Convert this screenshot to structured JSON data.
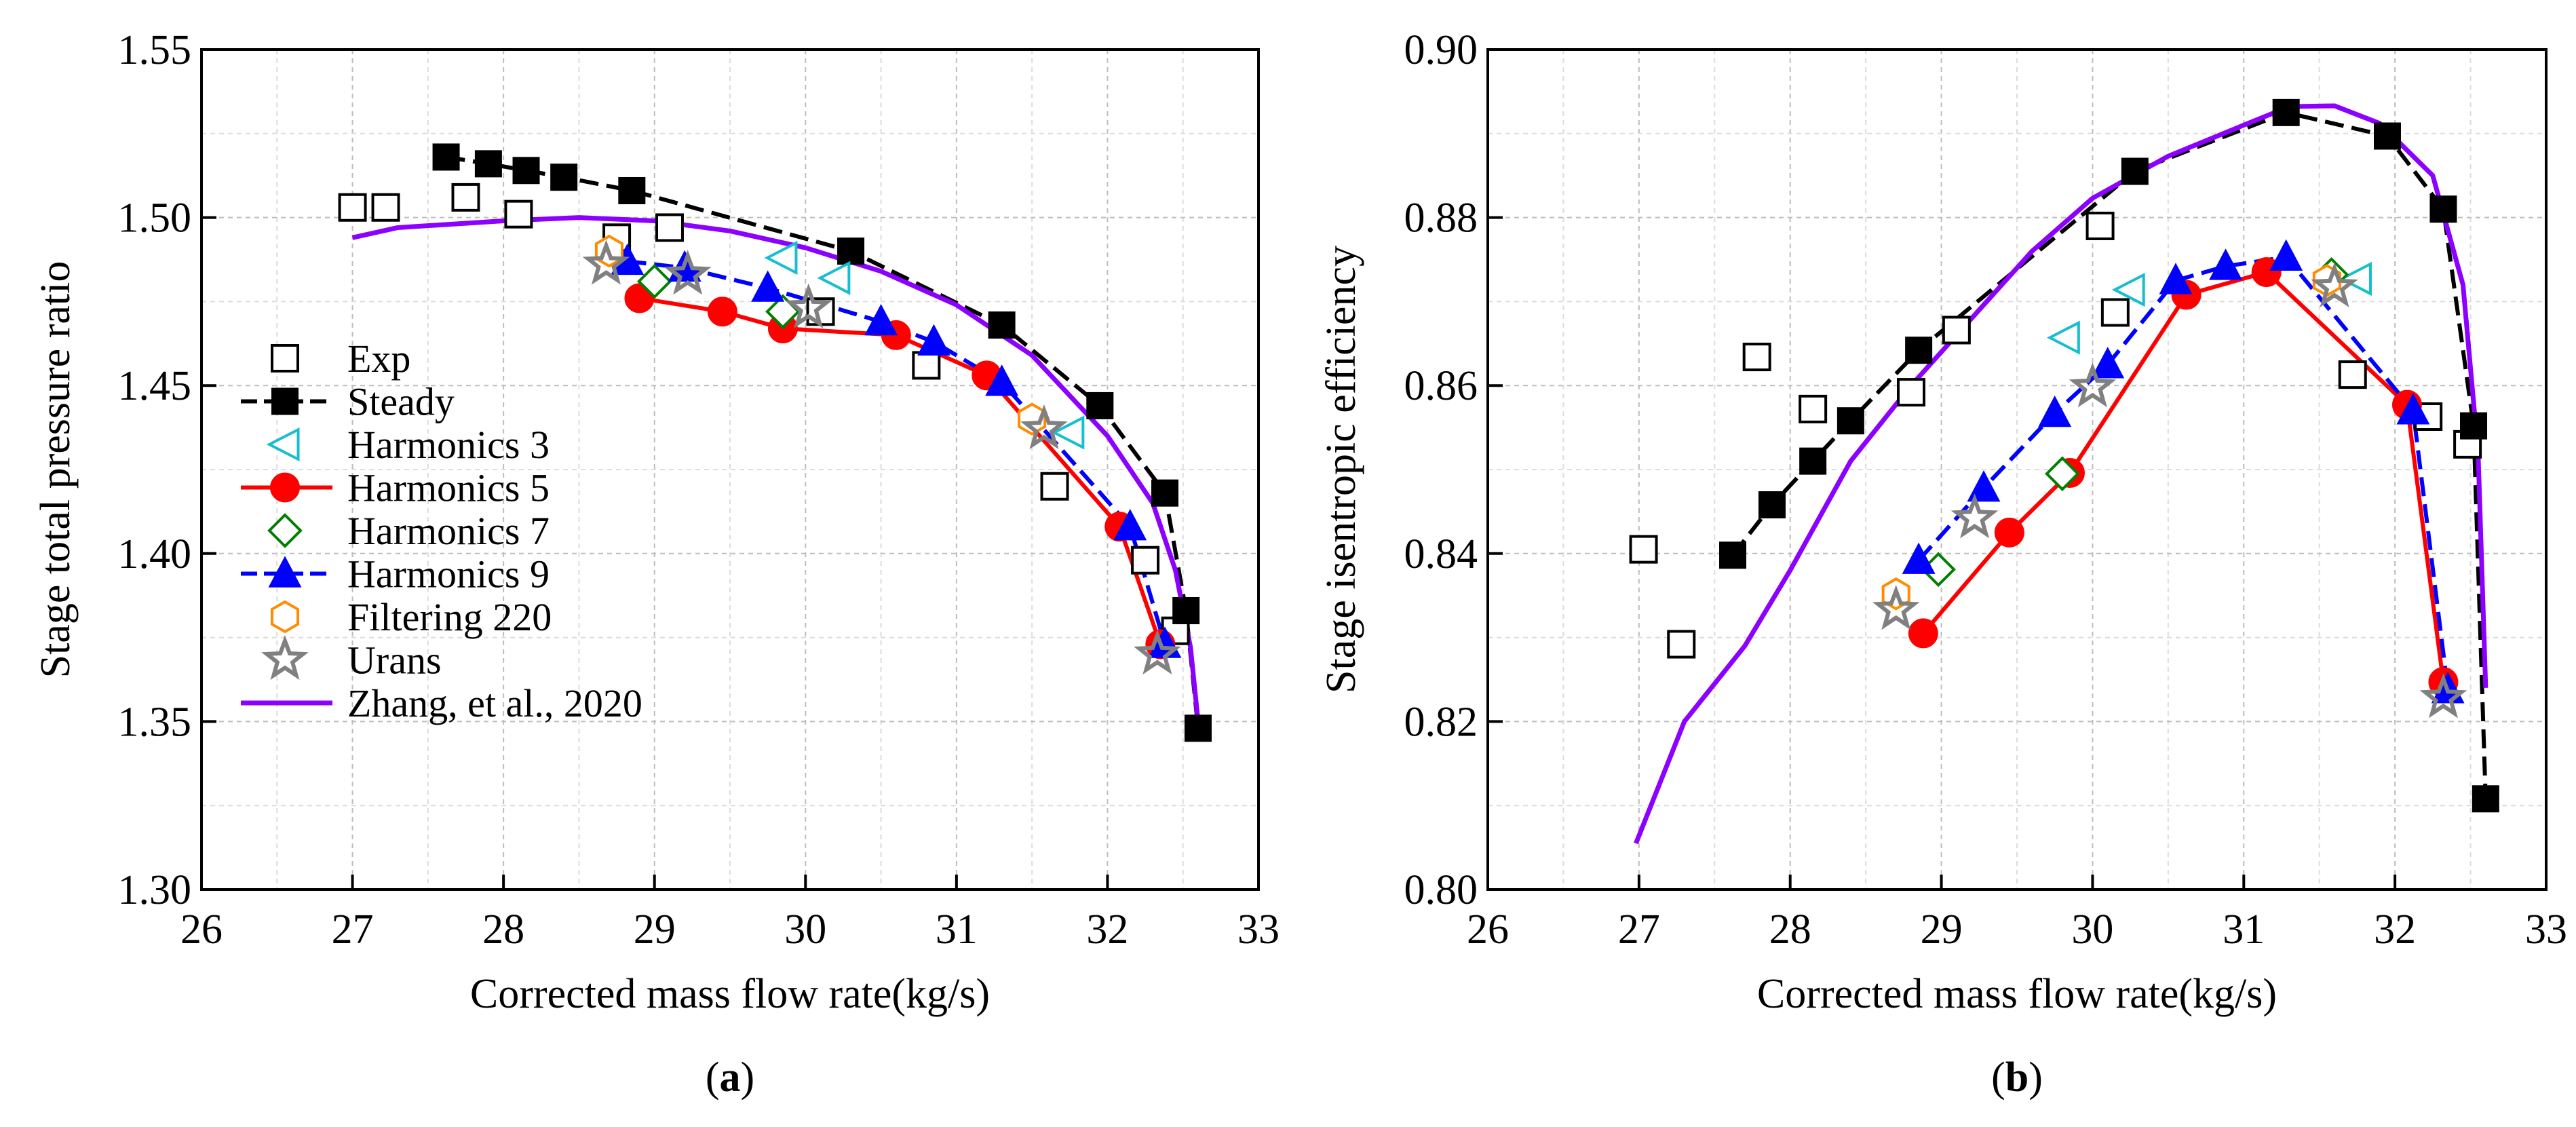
{
  "chart_data": [
    {
      "type": "line",
      "panel_label": "(a)",
      "xlabel": "Corrected mass flow rate(kg/s)",
      "ylabel": "Stage total pressure ratio",
      "xlim": [
        26,
        33
      ],
      "ylim": [
        1.3,
        1.55
      ],
      "xticks": [
        26,
        27,
        28,
        29,
        30,
        31,
        32,
        33
      ],
      "yticks": [
        1.3,
        1.35,
        1.4,
        1.45,
        1.5,
        1.55
      ],
      "ytick_labels": [
        "1.30",
        "1.35",
        "1.40",
        "1.45",
        "1.50",
        "1.55"
      ],
      "grid": true,
      "legend_position": "left",
      "series": [
        {
          "name": "Exp",
          "marker": "square-open",
          "color": "#000000",
          "line": "none",
          "x": [
            27.0,
            27.22,
            27.75,
            28.1,
            28.75,
            29.1,
            30.1,
            30.8,
            31.65,
            32.25,
            32.45
          ],
          "y": [
            1.503,
            1.503,
            1.506,
            1.501,
            1.494,
            1.497,
            1.472,
            1.456,
            1.42,
            1.398,
            1.377
          ]
        },
        {
          "name": "Steady",
          "marker": "square-filled",
          "color": "#000000",
          "line": "dash",
          "x": [
            27.62,
            27.9,
            28.15,
            28.4,
            28.85,
            30.3,
            31.3,
            31.95,
            32.38,
            32.52,
            32.6
          ],
          "y": [
            1.518,
            1.516,
            1.514,
            1.512,
            1.508,
            1.49,
            1.468,
            1.444,
            1.418,
            1.383,
            1.348
          ]
        },
        {
          "name": "Harmonics 3",
          "marker": "triangle-left-open",
          "color": "#17BECF",
          "line": "none",
          "x": [
            29.85,
            30.2,
            31.75
          ],
          "y": [
            1.488,
            1.482,
            1.436
          ]
        },
        {
          "name": "Harmonics 5",
          "marker": "circle-filled",
          "color": "#FF0000",
          "line": "solid",
          "x": [
            28.9,
            29.45,
            29.85,
            30.6,
            31.2,
            32.08,
            32.35
          ],
          "y": [
            1.476,
            1.472,
            1.467,
            1.465,
            1.453,
            1.408,
            1.373
          ]
        },
        {
          "name": "Harmonics 7",
          "marker": "diamond-open",
          "color": "#008000",
          "line": "none",
          "x": [
            29.0,
            29.85
          ],
          "y": [
            1.481,
            1.472
          ]
        },
        {
          "name": "Harmonics 9",
          "marker": "triangle-up-filled",
          "color": "#0000FF",
          "line": "dash",
          "x": [
            28.82,
            29.2,
            29.75,
            30.5,
            30.85,
            31.3,
            32.15,
            32.38
          ],
          "y": [
            1.487,
            1.485,
            1.479,
            1.469,
            1.463,
            1.451,
            1.408,
            1.373
          ]
        },
        {
          "name": "Filtering 220",
          "marker": "hexagon-open",
          "color": "#FF8C00",
          "line": "none",
          "x": [
            28.7,
            31.5
          ],
          "y": [
            1.49,
            1.44
          ]
        },
        {
          "name": "Urans",
          "marker": "star-open",
          "color": "#808080",
          "line": "none",
          "x": [
            28.68,
            29.22,
            30.02,
            31.58,
            32.33
          ],
          "y": [
            1.486,
            1.483,
            1.473,
            1.437,
            1.37
          ]
        },
        {
          "name": "Zhang, et al., 2020",
          "marker": "none",
          "color": "#8B00FF",
          "line": "solid",
          "x": [
            27.0,
            27.3,
            28.0,
            28.5,
            29.0,
            29.5,
            30.0,
            30.5,
            31.0,
            31.5,
            32.0,
            32.3,
            32.45,
            32.55,
            32.6
          ],
          "y": [
            1.494,
            1.497,
            1.499,
            1.5,
            1.499,
            1.496,
            1.491,
            1.484,
            1.474,
            1.459,
            1.435,
            1.415,
            1.395,
            1.372,
            1.35
          ]
        }
      ]
    },
    {
      "type": "line",
      "panel_label": "(b)",
      "xlabel": "Corrected mass flow rate(kg/s)",
      "ylabel": "Stage isentropic efficiency",
      "xlim": [
        26,
        33
      ],
      "ylim": [
        0.8,
        0.9
      ],
      "xticks": [
        26,
        27,
        28,
        29,
        30,
        31,
        32,
        33
      ],
      "yticks": [
        0.8,
        0.82,
        0.84,
        0.86,
        0.88,
        0.9
      ],
      "ytick_labels": [
        "0.80",
        "0.82",
        "0.84",
        "0.86",
        "0.88",
        "0.90"
      ],
      "grid": true,
      "legend_position": "none",
      "series": [
        {
          "name": "Exp",
          "marker": "square-open",
          "color": "#000000",
          "line": "none",
          "x": [
            27.03,
            27.28,
            27.78,
            28.15,
            28.8,
            29.1,
            30.05,
            30.15,
            31.72,
            32.22,
            32.48
          ],
          "y": [
            0.8405,
            0.8292,
            0.8634,
            0.8572,
            0.8592,
            0.8666,
            0.879,
            0.8687,
            0.8613,
            0.8563,
            0.853
          ]
        },
        {
          "name": "Steady",
          "marker": "square-filled",
          "color": "#000000",
          "line": "dash",
          "x": [
            27.62,
            27.88,
            28.15,
            28.4,
            28.85,
            30.28,
            31.28,
            31.95,
            32.32,
            32.52,
            32.6
          ],
          "y": [
            0.8398,
            0.8458,
            0.851,
            0.8558,
            0.8642,
            0.8855,
            0.8925,
            0.8897,
            0.881,
            0.8552,
            0.8108
          ]
        },
        {
          "name": "Harmonics 3",
          "marker": "triangle-left-open",
          "color": "#17BECF",
          "line": "none",
          "x": [
            29.82,
            30.25,
            31.75
          ],
          "y": [
            0.8657,
            0.8714,
            0.8727
          ]
        },
        {
          "name": "Harmonics 5",
          "marker": "circle-filled",
          "color": "#FF0000",
          "line": "solid",
          "x": [
            28.88,
            29.45,
            29.85,
            30.62,
            31.15,
            32.08,
            32.32
          ],
          "y": [
            0.8305,
            0.8425,
            0.8496,
            0.8708,
            0.8735,
            0.8577,
            0.8247
          ]
        },
        {
          "name": "Harmonics 7",
          "marker": "diamond-open",
          "color": "#008000",
          "line": "none",
          "x": [
            28.98,
            29.8,
            31.58
          ],
          "y": [
            0.8381,
            0.8495,
            0.8732
          ]
        },
        {
          "name": "Harmonics 9",
          "marker": "triangle-up-filled",
          "color": "#0000FF",
          "line": "dash",
          "x": [
            28.85,
            29.28,
            29.75,
            30.1,
            30.55,
            30.88,
            31.28,
            32.12,
            32.35
          ],
          "y": [
            0.8392,
            0.8478,
            0.8567,
            0.8625,
            0.8725,
            0.8742,
            0.8753,
            0.857,
            0.8238
          ]
        },
        {
          "name": "Filtering 220",
          "marker": "hexagon-open",
          "color": "#FF8C00",
          "line": "none",
          "x": [
            28.7,
            31.55
          ],
          "y": [
            0.8352,
            0.8725
          ]
        },
        {
          "name": "Urans",
          "marker": "star-open",
          "color": "#808080",
          "line": "none",
          "x": [
            28.7,
            29.22,
            30.0,
            31.6,
            32.32
          ],
          "y": [
            0.8333,
            0.8442,
            0.8598,
            0.8717,
            0.8228
          ]
        },
        {
          "name": "Zhang, et al., 2020",
          "marker": "none",
          "color": "#8B00FF",
          "line": "solid",
          "x": [
            26.98,
            27.3,
            27.7,
            28.0,
            28.4,
            28.8,
            29.2,
            29.6,
            30.0,
            30.5,
            31.0,
            31.3,
            31.6,
            31.9,
            32.25,
            32.45,
            32.55,
            32.6
          ],
          "y": [
            0.8055,
            0.82,
            0.829,
            0.838,
            0.851,
            0.86,
            0.868,
            0.876,
            0.8823,
            0.8873,
            0.891,
            0.8932,
            0.8933,
            0.8912,
            0.885,
            0.872,
            0.852,
            0.824
          ]
        }
      ]
    }
  ]
}
